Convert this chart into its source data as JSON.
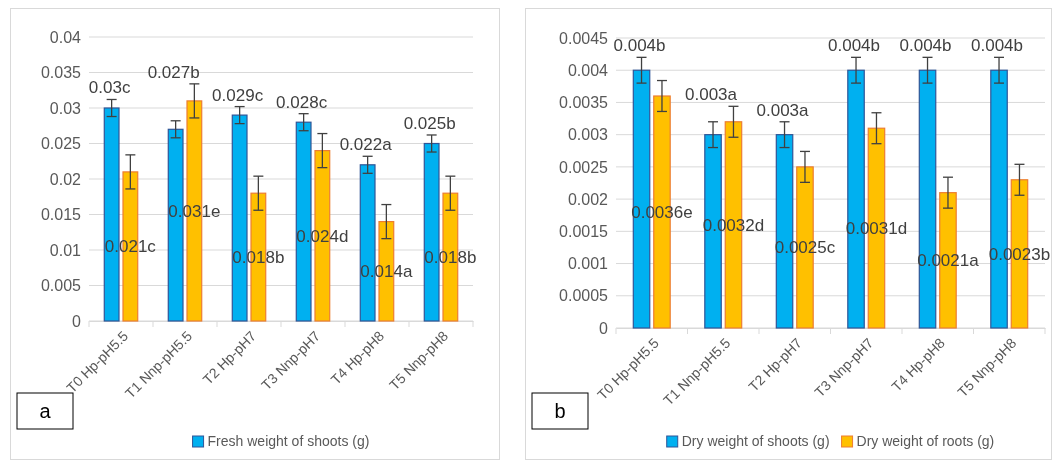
{
  "chart_data": [
    {
      "type": "bar",
      "categories": [
        "T0 Hp-pH5.5",
        "T1 Nnp-pH5.5",
        "T2 Hp-pH7",
        "T3 Nnp-pH7",
        "T4 Hp-pH8",
        "T5 Nnp-pH8"
      ],
      "series": [
        {
          "name": "Fresh weight of shoots (g)",
          "color": "#00b0f0",
          "values": [
            0.03,
            0.027,
            0.029,
            0.028,
            0.022,
            0.025
          ],
          "errors": [
            0.0012,
            0.0012,
            0.0012,
            0.0012,
            0.0012,
            0.0012
          ],
          "value_labels": [
            "0.03c",
            "0.027b",
            "0.029c",
            "0.028c",
            "0.022a",
            "0.025b"
          ]
        },
        {
          "color": "#ffc000",
          "values": [
            0.021,
            0.031,
            0.018,
            0.024,
            0.014,
            0.018
          ],
          "errors": [
            0.0024,
            0.0024,
            0.0024,
            0.0024,
            0.0024,
            0.0024
          ],
          "value_labels": [
            "0.021c",
            "0.031e",
            "0.018b",
            "0.024d",
            "0.014a",
            "0.018b"
          ]
        }
      ],
      "ylim": [
        0,
        0.04
      ],
      "yticks": [
        0,
        0.005,
        0.01,
        0.015,
        0.02,
        0.025,
        0.03,
        0.035,
        0.04
      ],
      "grid": "y",
      "legend": "bottom",
      "annotations": [
        "a"
      ]
    },
    {
      "type": "bar",
      "categories": [
        "T0 Hp-pH5.5",
        "T1 Nnp-pH5.5",
        "T2 Hp-pH7",
        "T3 Nnp-pH7",
        "T4 Hp-pH8",
        "T5 Nnp-pH8"
      ],
      "series": [
        {
          "name": "Dry weight of shoots (g)",
          "color": "#00b0f0",
          "values": [
            0.004,
            0.003,
            0.003,
            0.004,
            0.004,
            0.004
          ],
          "errors": [
            0.0002,
            0.0002,
            0.0002,
            0.0002,
            0.0002,
            0.0002
          ],
          "value_labels": [
            "0.004b",
            "0.003a",
            "0.003a",
            "0.004b",
            "0.004b",
            "0.004b"
          ]
        },
        {
          "name": "Dry weight of roots (g)",
          "color": "#ffc000",
          "values": [
            0.0036,
            0.0032,
            0.0025,
            0.0031,
            0.0021,
            0.0023
          ],
          "errors": [
            0.00024,
            0.00024,
            0.00024,
            0.00024,
            0.00024,
            0.00024
          ],
          "value_labels": [
            "0.0036e",
            "0.0032d",
            "0.0025c",
            "0.0031d",
            "0.0021a",
            "0.0023b"
          ]
        }
      ],
      "ylim": [
        0,
        0.0045
      ],
      "yticks": [
        0,
        0.0005,
        0.001,
        0.0015,
        0.002,
        0.0025,
        0.003,
        0.0035,
        0.004,
        0.0045
      ],
      "grid": "y",
      "legend": "bottom",
      "annotations": [
        "b"
      ]
    }
  ]
}
